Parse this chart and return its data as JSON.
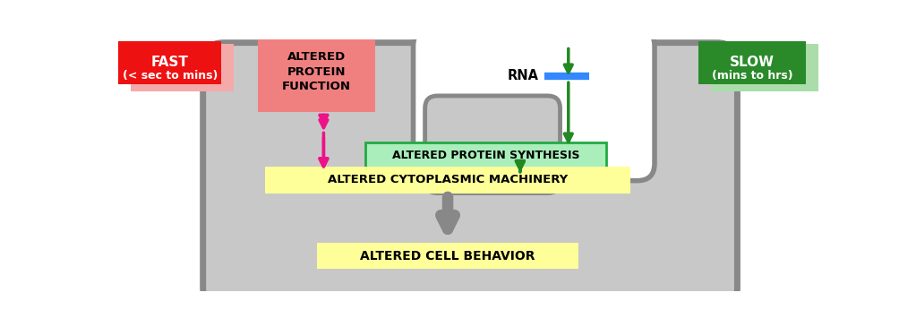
{
  "bg_color": "#ffffff",
  "cell_color": "#c8c8c8",
  "cell_border_color": "#888888",
  "nucleus_bg_color": "#f0f0f0",
  "nucleus_border_color": "#888888",
  "fast_box_color": "#ee1111",
  "fast_shadow_color": "#f5aaaa",
  "fast_text_line1": "FAST",
  "fast_text_line2": "(< sec to mins)",
  "slow_box_color": "#2a8a2a",
  "slow_shadow_color": "#aaddaa",
  "slow_text_line1": "SLOW",
  "slow_text_line2": "(mins to hrs)",
  "altered_protein_box_color": "#f08080",
  "altered_protein_text": "ALTERED\nPROTEIN\nFUNCTION",
  "rna_bar_color": "#3388ff",
  "rna_text": "RNA",
  "altered_synthesis_box_color": "#aaeebb",
  "altered_synthesis_border": "#22aa44",
  "altered_synthesis_text": "ALTERED PROTEIN SYNTHESIS",
  "cytoplasmic_box_color": "#ffff99",
  "cytoplasmic_border": "#cccc00",
  "cytoplasmic_text": "ALTERED CYTOPLASMIC MACHINERY",
  "cell_behavior_box_color": "#ffff99",
  "cell_behavior_border": "#cccc00",
  "cell_behavior_text": "ALTERED CELL BEHAVIOR",
  "arrow_green": "#228822",
  "arrow_magenta": "#ee1188",
  "arrow_gray": "#888888",
  "figw": 10.23,
  "figh": 3.65,
  "dpi": 100
}
